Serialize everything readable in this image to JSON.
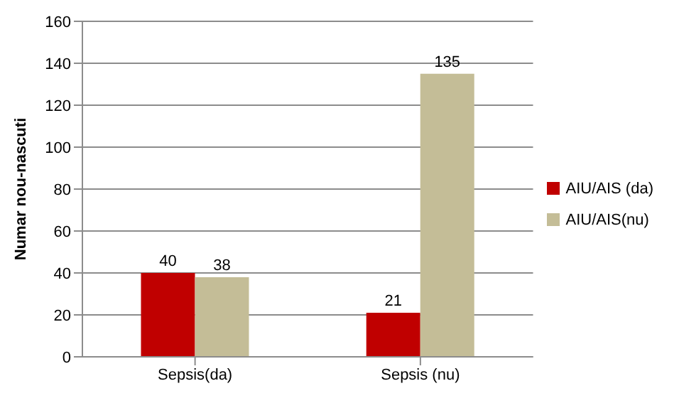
{
  "chart_data": {
    "type": "bar",
    "ylabel": "Numar nou-nascuti",
    "categories": [
      "Sepsis(da)",
      "Sepsis (nu)"
    ],
    "series": [
      {
        "name": "AIU/AIS (da)",
        "color": "#c00000",
        "values": [
          40,
          21
        ]
      },
      {
        "name": "AIU/AIS(nu)",
        "color": "#c4bd97",
        "values": [
          38,
          135
        ]
      }
    ],
    "ylim": [
      0,
      160
    ],
    "yticks": [
      0,
      20,
      40,
      60,
      80,
      100,
      120,
      140,
      160
    ],
    "grid": "y",
    "legend": "right",
    "data_labels": true
  }
}
